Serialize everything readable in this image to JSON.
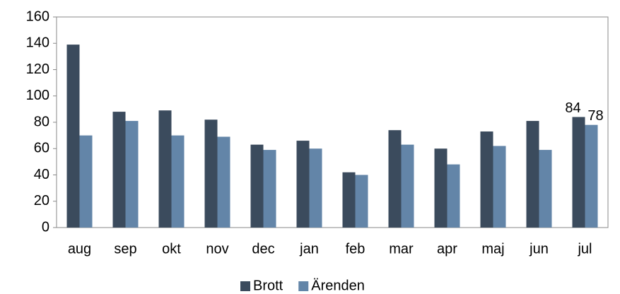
{
  "chart_data": {
    "type": "bar",
    "categories": [
      "aug",
      "sep",
      "okt",
      "nov",
      "dec",
      "jan",
      "feb",
      "mar",
      "apr",
      "maj",
      "jun",
      "jul"
    ],
    "series": [
      {
        "name": "Brott",
        "color": "#3b4b5d",
        "values": [
          139,
          88,
          89,
          82,
          63,
          66,
          42,
          74,
          60,
          73,
          81,
          84
        ],
        "value_labels": [
          null,
          null,
          null,
          null,
          null,
          null,
          null,
          null,
          null,
          null,
          null,
          "84"
        ]
      },
      {
        "name": "Ärenden",
        "color": "#6385a8",
        "values": [
          70,
          81,
          70,
          69,
          59,
          60,
          40,
          63,
          48,
          62,
          59,
          78
        ],
        "value_labels": [
          null,
          null,
          null,
          null,
          null,
          null,
          null,
          null,
          null,
          null,
          null,
          "78"
        ]
      }
    ],
    "ylim": [
      0,
      160
    ],
    "yticks": [
      0,
      20,
      40,
      60,
      80,
      100,
      120,
      140,
      160
    ],
    "grid": false,
    "legend": "bottom"
  }
}
